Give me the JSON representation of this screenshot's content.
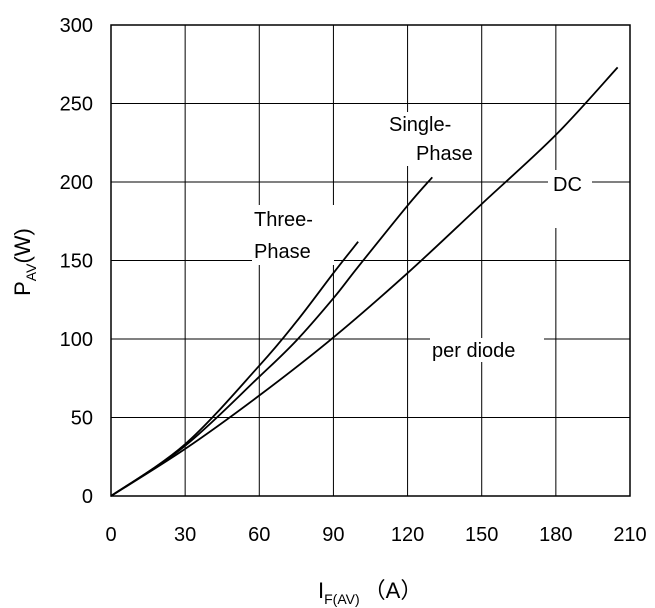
{
  "chart_data": {
    "type": "line",
    "x_axis": {
      "label_main": "I",
      "label_sub": "F(AV)",
      "label_unit": "（A）",
      "range": [
        0,
        210
      ],
      "ticks": [
        "0",
        "30",
        "60",
        "90",
        "120",
        "150",
        "180",
        "210"
      ]
    },
    "y_axis": {
      "label_main": "P",
      "label_sub": "AV",
      "label_unit": "(W)",
      "range": [
        0,
        300
      ],
      "ticks": [
        "0",
        "50",
        "100",
        "150",
        "200",
        "250",
        "300"
      ]
    },
    "grid": true,
    "annotations": {
      "three_phase": [
        "Three-",
        "Phase"
      ],
      "single_phase": [
        "Single-",
        "Phase"
      ],
      "dc": "DC",
      "per_diode": "per diode"
    },
    "series": [
      {
        "name": "Three-Phase",
        "points": [
          [
            0,
            0
          ],
          [
            30,
            33
          ],
          [
            60,
            83
          ],
          [
            75,
            111
          ],
          [
            90,
            142
          ],
          [
            100,
            162
          ]
        ]
      },
      {
        "name": "Single-Phase",
        "points": [
          [
            0,
            0
          ],
          [
            30,
            32
          ],
          [
            60,
            76
          ],
          [
            75,
            99
          ],
          [
            90,
            126
          ],
          [
            100,
            146
          ],
          [
            120,
            185
          ],
          [
            130,
            203
          ]
        ]
      },
      {
        "name": "DC",
        "points": [
          [
            0,
            0
          ],
          [
            30,
            30
          ],
          [
            60,
            64
          ],
          [
            90,
            101
          ],
          [
            120,
            142
          ],
          [
            150,
            186
          ],
          [
            180,
            230
          ],
          [
            205,
            273
          ]
        ]
      }
    ]
  }
}
